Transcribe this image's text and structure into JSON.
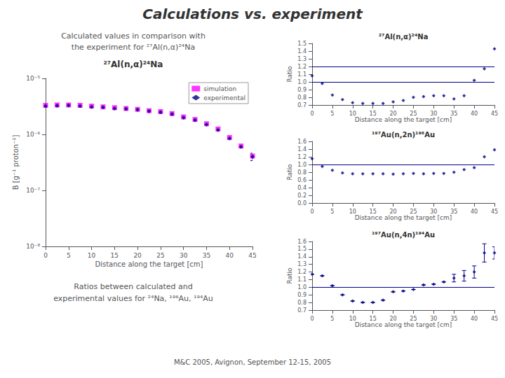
{
  "title": "Calculations vs. experiment",
  "annotations": [
    "Calculated values in comparison with",
    "the experiment for ²⁷Al(n,α)²⁴Na",
    "Ratios between calculated and",
    "experimental values for ²⁴Na, ¹⁹⁶Au, ¹⁹⁴Au",
    "M&C 2005, Avignon, September 12-15, 2005"
  ],
  "chart_data": [
    {
      "type": "scatter",
      "title": "²⁷Al(n,α)²⁴Na",
      "xlabel": "Distance along the target [cm]",
      "ylabel": "B [g⁻¹ proton⁻¹]",
      "log": "y",
      "grid": false,
      "legend": "upper right",
      "xlim": [
        0,
        45
      ],
      "xticks": [
        0,
        5,
        10,
        15,
        20,
        25,
        30,
        35,
        40,
        45
      ],
      "ylim": [
        1e-08,
        1e-05
      ],
      "yticks": [
        {
          "value": 1e-08,
          "label": "10⁻⁸"
        },
        {
          "value": 1e-07,
          "label": "10⁻⁷"
        },
        {
          "value": 1e-06,
          "label": "10⁻⁶"
        },
        {
          "value": 1e-05,
          "label": "10⁻⁵"
        }
      ],
      "x": [
        0,
        2.5,
        5,
        7.5,
        10,
        12.5,
        15,
        17.5,
        20,
        22.5,
        25,
        27.5,
        30,
        32.5,
        35,
        37.5,
        40,
        42.5,
        45
      ],
      "series": [
        {
          "name": "simulation",
          "color": "#ff00ff",
          "marker": "square",
          "values": [
            3.3e-06,
            3.35e-06,
            3.35e-06,
            3.3e-06,
            3.2e-06,
            3.1e-06,
            3e-06,
            2.9e-06,
            2.8e-06,
            2.65e-06,
            2.55e-06,
            2.35e-06,
            2.05e-06,
            1.85e-06,
            1.55e-06,
            1.25e-06,
            8.8e-07,
            6.2e-07,
            4.1e-07
          ]
        },
        {
          "name": "experimental",
          "color": "#000088",
          "marker": "diamond",
          "values": [
            3.2e-06,
            3.25e-06,
            3.3e-06,
            3.2e-06,
            3.1e-06,
            3.05e-06,
            2.9e-06,
            2.85e-06,
            2.75e-06,
            2.6e-06,
            2.5e-06,
            2.3e-06,
            2e-06,
            1.8e-06,
            1.5e-06,
            1.2e-06,
            8.5e-07,
            6e-07,
            4e-07
          ],
          "errors": [
            null,
            null,
            null,
            null,
            null,
            null,
            null,
            null,
            null,
            null,
            null,
            null,
            null,
            null,
            null,
            null,
            null,
            null,
            6e-08
          ]
        }
      ]
    },
    {
      "type": "scatter",
      "title": "²⁷Al(n,α)²⁴Na",
      "xlabel": "Distance along the target [cm]",
      "ylabel": "Ratio",
      "grid": false,
      "xlim": [
        0,
        45
      ],
      "xticks": [
        0,
        5,
        10,
        15,
        20,
        25,
        30,
        35,
        40,
        45
      ],
      "ylim": [
        0.7,
        1.5
      ],
      "yticks": [
        0.7,
        0.8,
        0.9,
        {
          "value": 1.0,
          "label": "1.0"
        },
        1.1,
        1.2,
        1.3,
        1.4,
        1.5
      ],
      "hlines": [
        1.0,
        1.2
      ],
      "x": [
        0,
        2.5,
        5,
        7.5,
        10,
        12.5,
        15,
        17.5,
        20,
        22.5,
        25,
        27.5,
        30,
        32.5,
        35,
        37.5,
        40,
        42.5,
        45
      ],
      "series": [
        {
          "color": "#000088",
          "marker": "diamond",
          "values": [
            1.08,
            0.98,
            0.83,
            0.77,
            0.73,
            0.72,
            0.72,
            0.72,
            0.74,
            0.76,
            0.8,
            0.81,
            0.82,
            0.82,
            0.78,
            0.82,
            1.02,
            1.17,
            1.43
          ]
        }
      ]
    },
    {
      "type": "scatter",
      "title": "¹⁹⁷Au(n,2n)¹⁹⁶Au",
      "xlabel": "Distance along the target [cm]",
      "ylabel": "Ratio",
      "grid": false,
      "xlim": [
        0,
        45
      ],
      "xticks": [
        0,
        5,
        10,
        15,
        20,
        25,
        30,
        35,
        40,
        45
      ],
      "ylim": [
        0.0,
        1.6
      ],
      "yticks": [
        {
          "value": 0.0,
          "label": "0.0"
        },
        0.2,
        0.4,
        0.6,
        0.8,
        {
          "value": 1.0,
          "label": "1.0"
        },
        1.2,
        1.4,
        1.6
      ],
      "hlines": [
        1.0
      ],
      "x": [
        0,
        2.5,
        5,
        7.5,
        10,
        12.5,
        15,
        17.5,
        20,
        22.5,
        25,
        27.5,
        30,
        32.5,
        35,
        37.5,
        40,
        42.5,
        45
      ],
      "series": [
        {
          "color": "#000088",
          "marker": "diamond",
          "values": [
            1.15,
            0.95,
            0.85,
            0.78,
            0.76,
            0.76,
            0.76,
            0.76,
            0.75,
            0.76,
            0.77,
            0.76,
            0.77,
            0.77,
            0.8,
            0.87,
            0.92,
            1.2,
            1.38
          ]
        }
      ]
    },
    {
      "type": "scatter",
      "title": "¹⁹⁷Au(n,4n)¹⁹⁴Au",
      "xlabel": "Distance along the target [cm]",
      "ylabel": "Ratio",
      "grid": false,
      "xlim": [
        0,
        45
      ],
      "xticks": [
        0,
        5,
        10,
        15,
        20,
        25,
        30,
        35,
        40,
        45
      ],
      "ylim": [
        0.7,
        1.6
      ],
      "yticks": [
        0.7,
        0.8,
        0.9,
        {
          "value": 1.0,
          "label": "1.0"
        },
        1.1,
        1.2,
        1.3,
        1.4,
        1.5,
        1.6
      ],
      "hlines": [
        1.0
      ],
      "x": [
        0,
        2.5,
        5,
        7.5,
        10,
        12.5,
        15,
        17.5,
        20,
        22.5,
        25,
        27.5,
        30,
        32.5,
        35,
        37.5,
        40,
        42.5,
        45
      ],
      "series": [
        {
          "color": "#000088",
          "marker": "diamond",
          "values": [
            1.17,
            1.15,
            1.02,
            0.9,
            0.82,
            0.8,
            0.8,
            0.83,
            0.94,
            0.95,
            0.97,
            1.03,
            1.04,
            1.07,
            1.12,
            1.15,
            1.2,
            1.45,
            1.45
          ],
          "errors": [
            0.0,
            0.0,
            0.0,
            0.0,
            0.0,
            0.0,
            0.0,
            0.0,
            0.0,
            0.0,
            0.0,
            0.0,
            0.0,
            0.0,
            0.05,
            0.07,
            0.08,
            0.12,
            0.08
          ]
        }
      ]
    }
  ]
}
